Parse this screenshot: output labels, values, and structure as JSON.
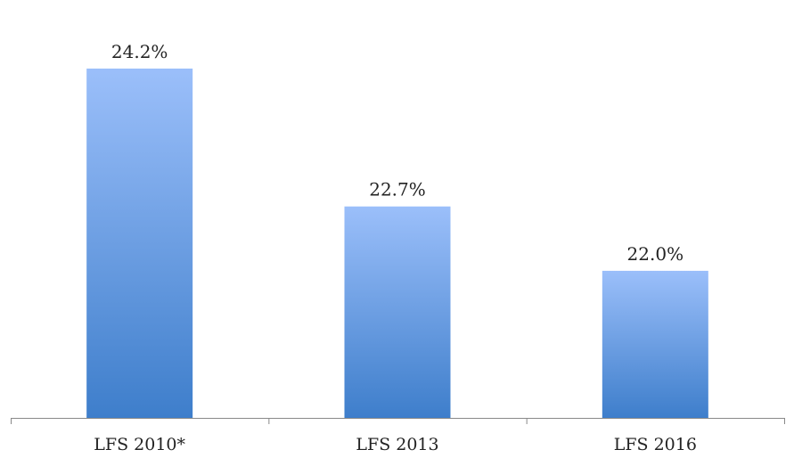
{
  "chart_data": {
    "type": "bar",
    "categories": [
      "LFS 2010*",
      "LFS 2013",
      "LFS 2016"
    ],
    "values": [
      24.2,
      22.7,
      22.0
    ],
    "data_labels": [
      "24.2%",
      "22.7%",
      "22.0%"
    ],
    "ylim": [
      20.4,
      24.5
    ],
    "grid": false,
    "legend": "none",
    "colors": {
      "bar_top": "#9BBFFA",
      "bar_bottom": "#3E7ECB",
      "axis": "#888888"
    }
  }
}
